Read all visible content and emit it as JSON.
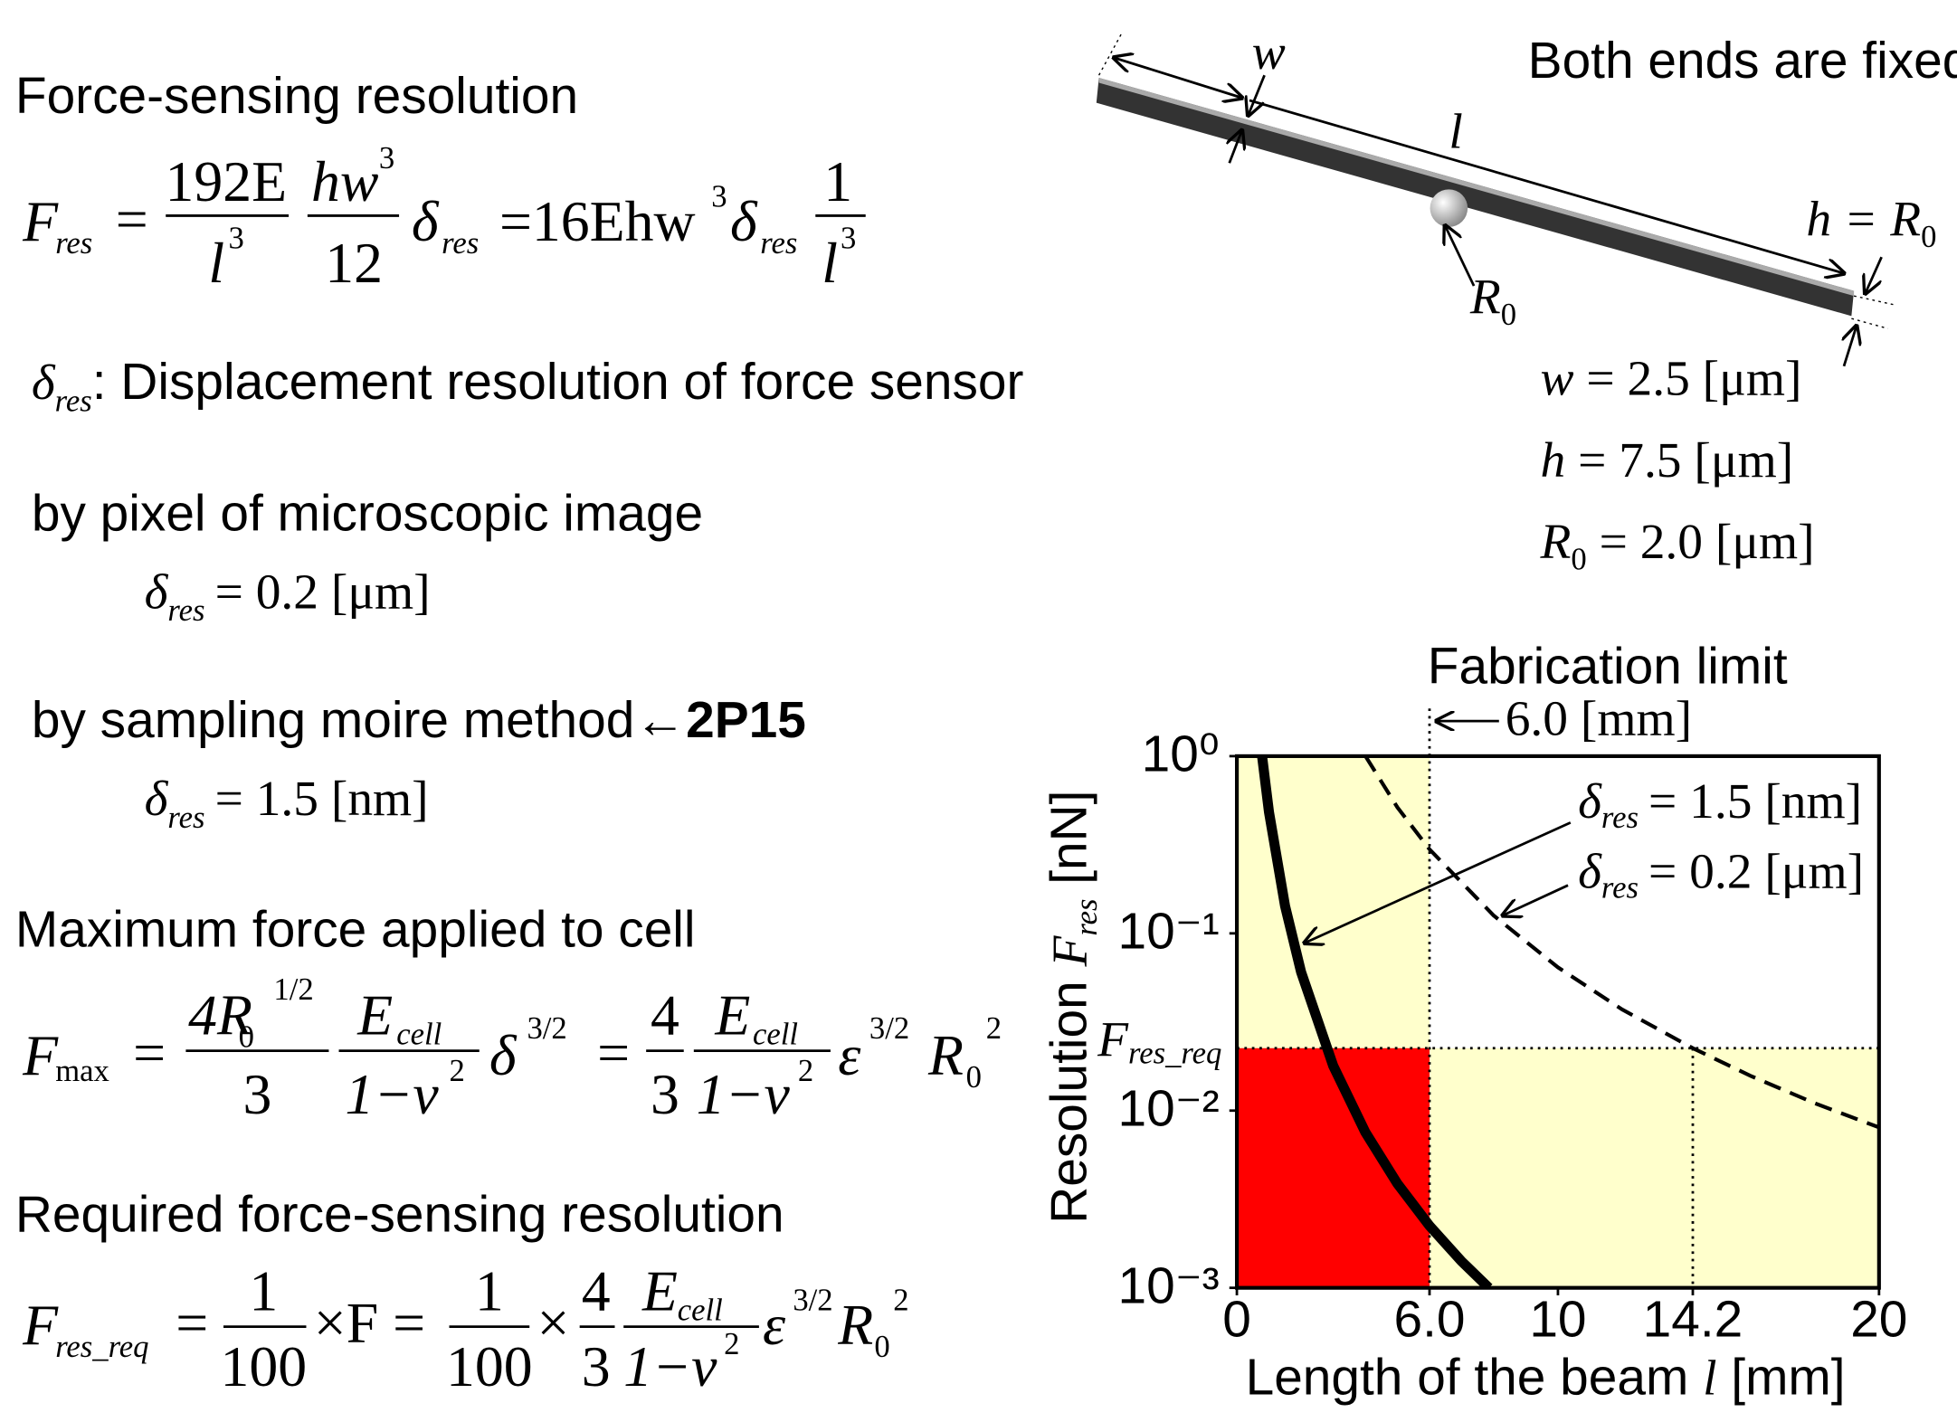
{
  "left": {
    "heading1": "Force-sensing resolution",
    "eq1": [
      "F",
      "res",
      "=",
      "192E",
      "l",
      "3",
      "hw",
      "3",
      "12",
      "δ",
      "res",
      "=16Ehw",
      "3",
      "δ",
      "res",
      "1",
      "l",
      "3"
    ],
    "delta_def": {
      "symbol": "δ",
      "sub": "res",
      "text": ": Displacement resolution of force sensor"
    },
    "pixel": {
      "text": "by pixel of microscopic image",
      "symbol": "δ",
      "sub": "res",
      "value": "= 0.2 [μm]"
    },
    "moire": {
      "text": "by sampling moire method←",
      "ref": "2P15",
      "symbol": "δ",
      "sub": "res",
      "value": "= 1.5 [nm]"
    },
    "heading2": "Maximum force applied to cell",
    "eq2": [
      "F",
      "max",
      "=",
      "4R",
      "0",
      "1/2",
      "3",
      "E",
      "cell",
      "1−ν",
      "2",
      "δ",
      "3/2",
      "=",
      "4",
      "3",
      "E",
      "cell",
      "1−ν",
      "2",
      "ε",
      "3/2",
      "R",
      "0",
      "2"
    ],
    "heading3": "Required force-sensing resolution",
    "eq3": [
      "F",
      "res_req",
      "=",
      "1",
      "100",
      "×F =",
      "1",
      "100",
      "×",
      "4",
      "3",
      "E",
      "cell",
      "1−ν",
      "2",
      "ε",
      "3/2",
      "R",
      "0",
      "2"
    ]
  },
  "diagram": {
    "note": "Both ends are fixed",
    "w": "w",
    "l": "l",
    "h_eq": [
      "h = R",
      "0"
    ],
    "R0": [
      "R",
      "0"
    ],
    "params": [
      {
        "symbol": "w",
        "text": "= 2.5 [μm]"
      },
      {
        "symbol": "h",
        "text": "= 7.5 [μm]"
      },
      {
        "symbol": "R",
        "sub": "0",
        "text": "= 2.0 [μm]"
      }
    ]
  },
  "chart_data": {
    "type": "line",
    "x_label": {
      "text": "Length of the beam ",
      "symbol": "l",
      "unit": " [mm]"
    },
    "y_label": {
      "text": "Resolution ",
      "symbol": "F",
      "sub": "res",
      "unit": " [nN]"
    },
    "xlim": [
      0,
      20
    ],
    "ylim": [
      0.001,
      1
    ],
    "log_y": true,
    "xticks": [
      0,
      {
        "value": 6,
        "label": "6.0"
      },
      10,
      14.2,
      20
    ],
    "yticks": [
      {
        "value": 1,
        "label": "10⁰"
      },
      {
        "value": 0.1,
        "label": "10⁻¹"
      },
      {
        "value": 0.01,
        "label": "10⁻²"
      },
      {
        "value": 0.001,
        "label": "10⁻³"
      }
    ],
    "fabrication_limit": {
      "title": "Fabrication limit",
      "value": 6,
      "label": "6.0 [mm]"
    },
    "req_line": {
      "symbol": "F",
      "sub": "res_req",
      "value": 0.0225,
      "x": 14.2
    },
    "series": [
      {
        "symbol": "δ",
        "sub": "res",
        "name": "= 1.5 [nm]",
        "color": "#000000",
        "style": "solid",
        "x": [
          0.785,
          1,
          1.5,
          2,
          3,
          4,
          5,
          6,
          7,
          7.85
        ],
        "values": [
          1,
          0.484,
          0.143,
          0.0605,
          0.0179,
          0.00756,
          0.00387,
          0.00224,
          0.00141,
          0.001
        ]
      },
      {
        "symbol": "δ",
        "sub": "res",
        "name": "= 0.2 [μm]",
        "color": "#000000",
        "style": "dashed",
        "x": [
          4.01,
          5,
          6,
          8,
          10,
          12,
          14.2,
          16,
          18,
          20
        ],
        "values": [
          0.997,
          0.514,
          0.298,
          0.126,
          0.0643,
          0.0372,
          0.0225,
          0.0157,
          0.011,
          0.00804
        ]
      }
    ]
  }
}
